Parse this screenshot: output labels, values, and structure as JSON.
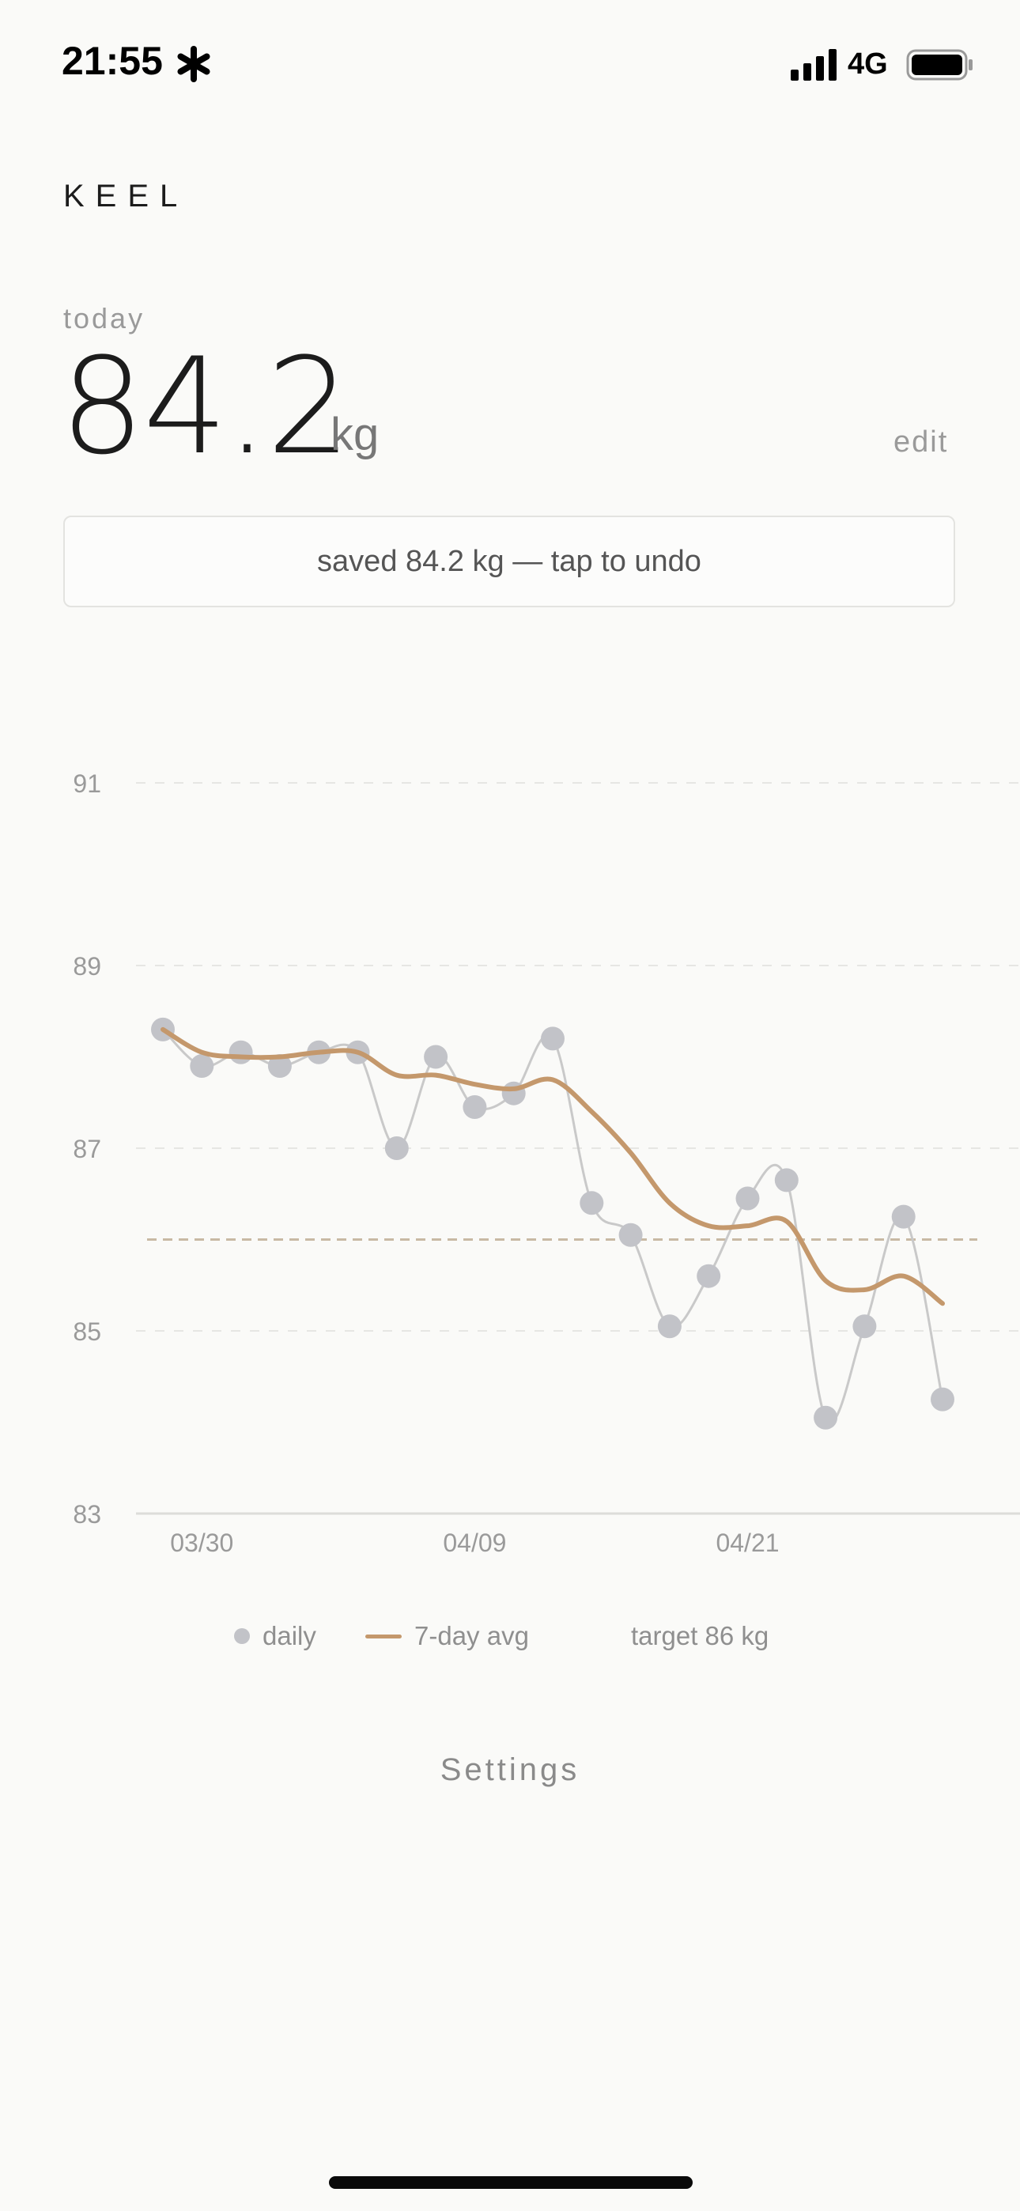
{
  "status_bar": {
    "time": "21:55",
    "network": "4G",
    "icons": [
      "asterisk-icon",
      "signal-icon",
      "battery-icon"
    ]
  },
  "app": {
    "brand": "KEEL"
  },
  "today": {
    "label": "today",
    "value": "84.2",
    "unit": "kg",
    "edit_label": "edit"
  },
  "toast": {
    "text": "saved 84.2 kg — tap to undo"
  },
  "legend": {
    "daily_label": "daily",
    "avg_label": "7-day avg",
    "target_label": "target 86 kg"
  },
  "settings_label": "Settings",
  "colors": {
    "daily_dot": "#c2c3c8",
    "daily_line": "#c9c9c9",
    "avg_line": "#c4986c",
    "target_line": "#c8b9a4",
    "grid": "#e6e6e3"
  },
  "chart_data": {
    "type": "line",
    "ylim": [
      83,
      91
    ],
    "y_ticks": [
      91,
      89,
      87,
      85,
      83
    ],
    "x_tick_labels": [
      {
        "label": "03/30",
        "index": 1
      },
      {
        "label": "04/09",
        "index": 8
      },
      {
        "label": "04/21",
        "index": 15
      }
    ],
    "target": 86,
    "grid": true,
    "series": [
      {
        "name": "daily",
        "style": "points+smooth-line",
        "values": [
          88.3,
          87.9,
          88.05,
          87.9,
          88.05,
          88.05,
          87.0,
          88.0,
          87.45,
          87.6,
          88.2,
          86.4,
          86.05,
          85.05,
          85.6,
          86.45,
          86.65,
          84.05,
          85.05,
          86.25,
          84.25
        ]
      },
      {
        "name": "7-day avg",
        "style": "smooth-line",
        "values": [
          88.3,
          88.05,
          88.0,
          88.0,
          88.05,
          88.05,
          87.8,
          87.8,
          87.7,
          87.65,
          87.75,
          87.4,
          86.95,
          86.4,
          86.15,
          86.15,
          86.2,
          85.55,
          85.45,
          85.6,
          85.3
        ]
      }
    ]
  }
}
